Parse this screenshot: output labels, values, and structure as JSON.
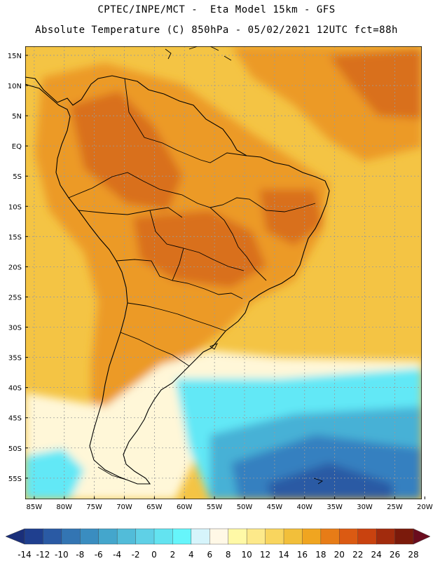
{
  "header": {
    "title_line1": "CPTEC/INPE/MCT -  Eta Model 15km - GFS",
    "title_line2": "Absolute Temperature (C) 850hPa - 05/02/2021 12UTC fct=88h"
  },
  "axes": {
    "lat_labels": [
      "15N",
      "10N",
      "5N",
      "EQ",
      "5S",
      "10S",
      "15S",
      "20S",
      "25S",
      "30S",
      "35S",
      "40S",
      "45S",
      "50S",
      "55S"
    ],
    "lat_values": [
      15,
      10,
      5,
      0,
      -5,
      -10,
      -15,
      -20,
      -25,
      -30,
      -35,
      -40,
      -45,
      -50,
      -55
    ],
    "lon_labels": [
      "85W",
      "80W",
      "75W",
      "70W",
      "65W",
      "60W",
      "55W",
      "50W",
      "45W",
      "40W",
      "35W",
      "30W",
      "25W",
      "20W"
    ],
    "lon_values": [
      -85,
      -80,
      -75,
      -70,
      -65,
      -60,
      -55,
      -50,
      -45,
      -40,
      -35,
      -30,
      -25,
      -20
    ],
    "lat_range": [
      -58.5,
      16.5
    ],
    "lon_range": [
      -86.5,
      -20.5
    ]
  },
  "colorbar": {
    "labels": [
      "-14",
      "-12",
      "-10",
      "-8",
      "-6",
      "-4",
      "-2",
      "0",
      "2",
      "4",
      "6",
      "8",
      "10",
      "12",
      "14",
      "16",
      "18",
      "20",
      "22",
      "24",
      "26",
      "28"
    ],
    "colors": [
      "#1f3f8f",
      "#2a5aa4",
      "#3375b3",
      "#3a8dc0",
      "#44a6cc",
      "#52bcd9",
      "#5fd0e6",
      "#63e3f0",
      "#66f5fb",
      "#d6f4fb",
      "#fff8e6",
      "#fff9a6",
      "#fde98a",
      "#f9d55e",
      "#f2bf3a",
      "#f0a520",
      "#e77c17",
      "#db5a12",
      "#c9420f",
      "#a22b0d",
      "#7b1a0b"
    ],
    "under_color": "#1a2f7a",
    "over_color": "#6a0c1e"
  },
  "field_colors": {
    "hot": "#d96f1d",
    "warm": "#ec9a28",
    "mild": "#f2be3f",
    "cool": "#f8d964",
    "pale": "#fff7d8",
    "cyan": "#62e8f6",
    "blue1": "#46b1d6",
    "blue2": "#3680c0",
    "blue3": "#2a5aa4",
    "ocean_warm": "#f4c444"
  }
}
